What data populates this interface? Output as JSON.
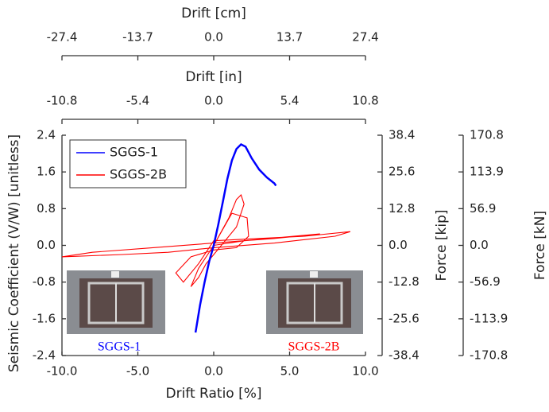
{
  "chart_data": {
    "type": "line",
    "xlabel": "Drift Ratio [%]",
    "ylabel": "Seismic Coefficient (V/W) [unitless]",
    "xlim": [
      -10,
      10
    ],
    "xticks": [
      {
        "value": -10,
        "label": "-10.0"
      },
      {
        "value": -5,
        "label": "-5.0"
      },
      {
        "value": 0,
        "label": "0.0"
      },
      {
        "value": 5,
        "label": "5.0"
      },
      {
        "value": 10,
        "label": "10.0"
      }
    ],
    "ylim": [
      -2.4,
      2.4
    ],
    "yticks": [
      2.4,
      1.6,
      0.8,
      {
        "value": 0,
        "label": "0.0"
      },
      -0.8,
      -1.6,
      -2.4
    ],
    "top_axes": [
      {
        "label": "Drift [cm]",
        "lim": [
          -27.4,
          27.4
        ],
        "ticks": [
          -27.4,
          -13.7,
          {
            "value": 0,
            "label": "0.0"
          },
          13.7,
          27.4
        ]
      },
      {
        "label": "Drift [in]",
        "lim": [
          -10.8,
          10.8
        ],
        "ticks": [
          -10.8,
          -5.4,
          {
            "value": 0,
            "label": "0.0"
          },
          5.4,
          10.8
        ]
      }
    ],
    "right_axes": [
      {
        "label": "Force [kip]",
        "lim": [
          -38.4,
          38.4
        ],
        "ticks": [
          38.4,
          25.6,
          12.8,
          {
            "value": 0,
            "label": "0.0"
          },
          -12.8,
          -25.6,
          -38.4
        ]
      },
      {
        "label": "Force [kN]",
        "lim": [
          -170.8,
          170.8
        ],
        "ticks": [
          170.8,
          113.9,
          56.9,
          {
            "value": 0,
            "label": "0.0"
          },
          -56.9,
          -113.9,
          -170.8
        ]
      }
    ],
    "series": [
      {
        "name": "SGGS-1",
        "color": "#0000ff",
        "x": [
          -1.2,
          -0.9,
          -0.6,
          -0.3,
          0,
          0.3,
          0.6,
          0.9,
          1.2,
          1.5,
          1.8,
          2.1,
          2.5,
          3.0,
          3.5,
          4.0,
          4.1
        ],
        "values": [
          -1.9,
          -1.3,
          -0.8,
          -0.35,
          0,
          0.45,
          0.95,
          1.45,
          1.85,
          2.1,
          2.2,
          2.15,
          1.9,
          1.65,
          1.48,
          1.35,
          1.3
        ]
      },
      {
        "name": "SGGS-2B",
        "color": "#ff0000",
        "x": [
          0,
          0.5,
          1,
          1.5,
          1.8,
          2.0,
          1.5,
          0.5,
          -0.5,
          -1,
          -1.5,
          -1,
          0,
          1.2,
          2.2,
          2.3,
          1.5,
          0,
          -1.5,
          -2.5,
          -2.0,
          -1,
          0,
          3,
          6,
          9,
          8,
          4,
          0,
          -3,
          -6,
          -10,
          -8,
          -4,
          0,
          4,
          7,
          2,
          0
        ],
        "values": [
          0,
          0.3,
          0.6,
          1.0,
          1.1,
          0.9,
          0.4,
          0,
          -0.4,
          -0.7,
          -0.9,
          -0.5,
          0,
          0.7,
          0.6,
          0.2,
          -0.05,
          -0.1,
          -0.25,
          -0.6,
          -0.8,
          -0.4,
          0.1,
          0.15,
          0.2,
          0.3,
          0.2,
          0.05,
          -0.05,
          -0.15,
          -0.2,
          -0.25,
          -0.15,
          -0.05,
          0.05,
          0.15,
          0.25,
          0.1,
          0
        ]
      }
    ],
    "annotations": [
      "SGGS-1",
      "SGGS-2B"
    ]
  }
}
